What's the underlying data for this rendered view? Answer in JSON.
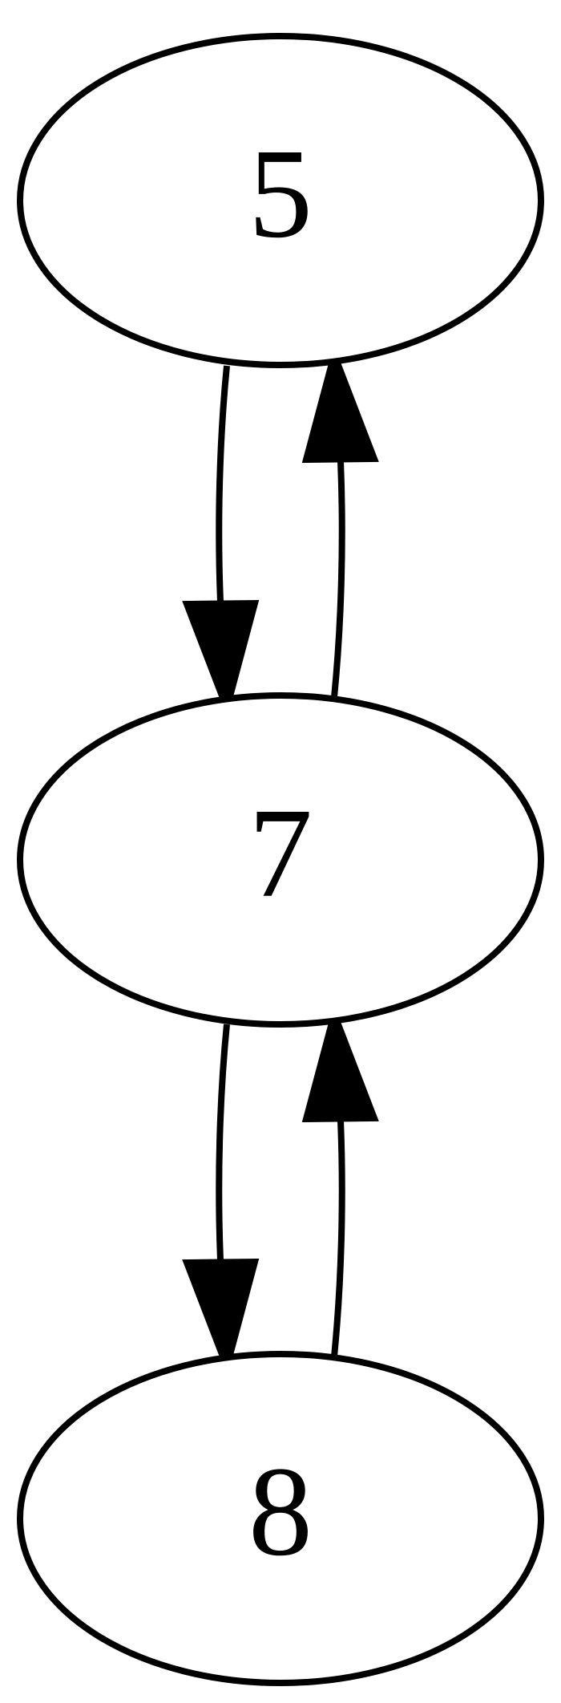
{
  "diagram": {
    "type": "directed-graph",
    "nodes": [
      {
        "id": "n5",
        "label": "5"
      },
      {
        "id": "n7",
        "label": "7"
      },
      {
        "id": "n8",
        "label": "8"
      }
    ],
    "edges": [
      {
        "from": "5",
        "to": "7"
      },
      {
        "from": "7",
        "to": "5"
      },
      {
        "from": "7",
        "to": "8"
      },
      {
        "from": "8",
        "to": "7"
      }
    ],
    "colors": {
      "stroke": "#000000",
      "background": "#ffffff"
    }
  }
}
